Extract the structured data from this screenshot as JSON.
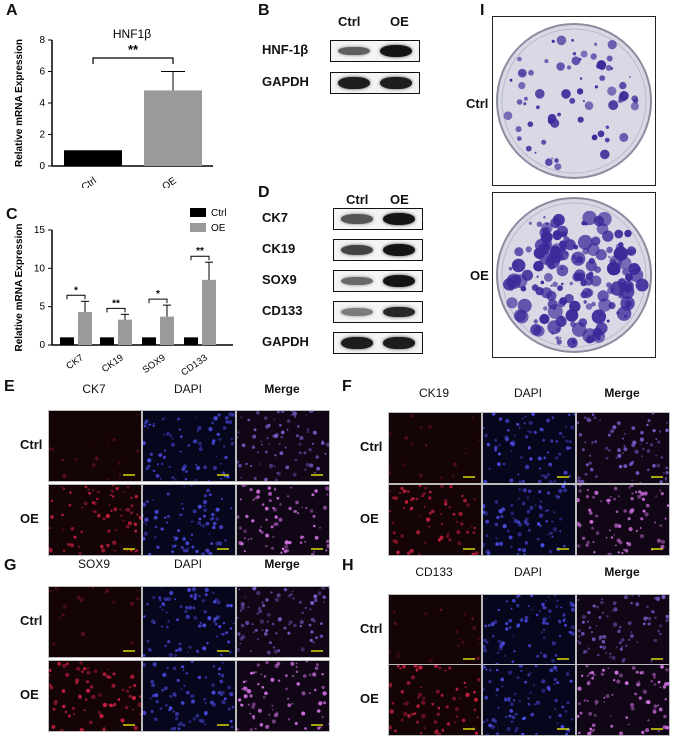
{
  "panel_letters": {
    "a": "A",
    "b": "B",
    "c": "C",
    "d": "D",
    "e": "E",
    "f": "F",
    "g": "G",
    "h": "H",
    "i": "I"
  },
  "groups": {
    "ctrl": "Ctrl",
    "oe": "OE"
  },
  "chart_data": [
    {
      "type": "bar",
      "panel": "A",
      "title": "HNF1β",
      "ylabel": "Relative mRNA Expression",
      "categories": [
        "Ctrl",
        "OE"
      ],
      "values": [
        1.0,
        4.8
      ],
      "errors": [
        0,
        1.2
      ],
      "ylim": [
        0,
        8
      ],
      "yticks": [
        0,
        2,
        4,
        6,
        8
      ],
      "significance": "**",
      "colors": [
        "#000000",
        "#9a9a9a"
      ]
    },
    {
      "type": "bar",
      "panel": "C",
      "ylabel": "Relative mRNA Expression",
      "categories": [
        "CK7",
        "CK19",
        "SOX9",
        "CD133"
      ],
      "series": [
        {
          "name": "Ctrl",
          "values": [
            1.0,
            1.0,
            1.0,
            1.0
          ],
          "errors": [
            0,
            0,
            0,
            0
          ],
          "color": "#000000"
        },
        {
          "name": "OE",
          "values": [
            4.3,
            3.3,
            3.7,
            8.5
          ],
          "errors": [
            1.4,
            0.7,
            1.5,
            2.3
          ],
          "color": "#9a9a9a"
        }
      ],
      "significance": [
        "*",
        "**",
        "*",
        "**"
      ],
      "ylim": [
        0,
        15
      ],
      "yticks": [
        0,
        5,
        10,
        15
      ],
      "legend_position": "top-right"
    }
  ],
  "blot_b": {
    "rows": [
      {
        "label": "HNF-1β",
        "ctrl_intensity": 0.55,
        "oe_intensity": 0.95
      },
      {
        "label": "GAPDH",
        "ctrl_intensity": 0.9,
        "oe_intensity": 0.9
      }
    ]
  },
  "blot_d": {
    "rows": [
      {
        "label": "CK7",
        "ctrl_intensity": 0.6,
        "oe_intensity": 0.95
      },
      {
        "label": "CK19",
        "ctrl_intensity": 0.7,
        "oe_intensity": 0.95
      },
      {
        "label": "SOX9",
        "ctrl_intensity": 0.5,
        "oe_intensity": 0.95
      },
      {
        "label": "CD133",
        "ctrl_intensity": 0.4,
        "oe_intensity": 0.85
      },
      {
        "label": "GAPDH",
        "ctrl_intensity": 0.9,
        "oe_intensity": 0.9
      }
    ]
  },
  "if_panels": {
    "E": {
      "marker": "CK7",
      "dapi": "DAPI",
      "merge": "Merge"
    },
    "F": {
      "marker": "CK19",
      "dapi": "DAPI",
      "merge": "Merge"
    },
    "G": {
      "marker": "SOX9",
      "dapi": "DAPI",
      "merge": "Merge"
    },
    "H": {
      "marker": "CD133",
      "dapi": "DAPI",
      "merge": "Merge"
    }
  },
  "colors": {
    "ctrl_bar": "#000000",
    "oe_bar": "#9a9a9a",
    "stain_red": "#b0203a",
    "stain_blue": "#3a3ad0",
    "scale_bar": "#d8d800",
    "colony": "#3b2a9a"
  }
}
